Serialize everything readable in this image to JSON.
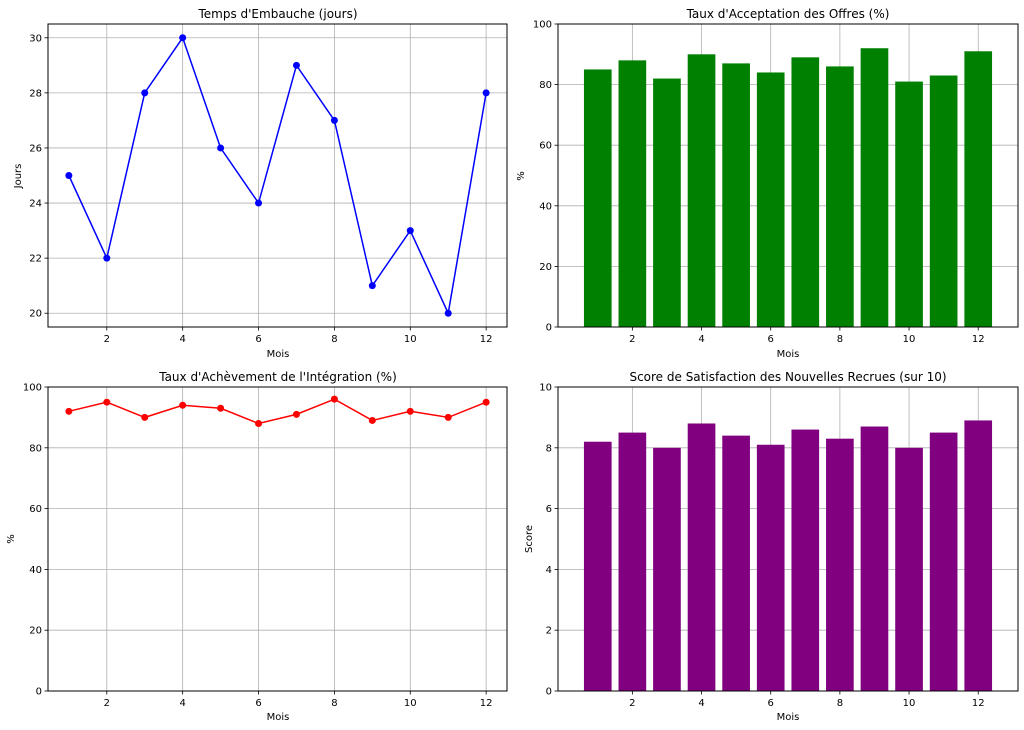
{
  "chart_data": [
    {
      "type": "line",
      "title": "Temps d'Embauche (jours)",
      "xlabel": "Mois",
      "ylabel": "Jours",
      "x": [
        1,
        2,
        3,
        4,
        5,
        6,
        7,
        8,
        9,
        10,
        11,
        12
      ],
      "values": [
        25,
        22,
        28,
        30,
        26,
        24,
        29,
        27,
        21,
        23,
        20,
        28
      ],
      "xlim": [
        0.45,
        12.55
      ],
      "ylim": [
        19.5,
        30.5
      ],
      "xticks": [
        2,
        4,
        6,
        8,
        10,
        12
      ],
      "yticks": [
        20,
        22,
        24,
        26,
        28,
        30
      ],
      "grid": true,
      "color": "#0000ff"
    },
    {
      "type": "bar",
      "title": "Taux d'Acceptation des Offres (%)",
      "xlabel": "Mois",
      "ylabel": "%",
      "x": [
        1,
        2,
        3,
        4,
        5,
        6,
        7,
        8,
        9,
        10,
        11,
        12
      ],
      "values": [
        85,
        88,
        82,
        90,
        87,
        84,
        89,
        86,
        92,
        81,
        83,
        91
      ],
      "xlim": [
        -0.15,
        13.15
      ],
      "ylim": [
        0,
        100
      ],
      "xticks": [
        2,
        4,
        6,
        8,
        10,
        12
      ],
      "yticks": [
        0,
        20,
        40,
        60,
        80,
        100
      ],
      "grid": true,
      "color": "#008000"
    },
    {
      "type": "line",
      "title": "Taux d'Achèvement de l'Intégration (%)",
      "xlabel": "Mois",
      "ylabel": "%",
      "x": [
        1,
        2,
        3,
        4,
        5,
        6,
        7,
        8,
        9,
        10,
        11,
        12
      ],
      "values": [
        92,
        95,
        90,
        94,
        93,
        88,
        91,
        96,
        89,
        92,
        90,
        95
      ],
      "xlim": [
        0.45,
        12.55
      ],
      "ylim": [
        0,
        100
      ],
      "xticks": [
        2,
        4,
        6,
        8,
        10,
        12
      ],
      "yticks": [
        0,
        20,
        40,
        60,
        80,
        100
      ],
      "grid": true,
      "color": "#ff0000"
    },
    {
      "type": "bar",
      "title": "Score de Satisfaction des Nouvelles Recrues (sur 10)",
      "xlabel": "Mois",
      "ylabel": "Score",
      "x": [
        1,
        2,
        3,
        4,
        5,
        6,
        7,
        8,
        9,
        10,
        11,
        12
      ],
      "values": [
        8.2,
        8.5,
        8.0,
        8.8,
        8.4,
        8.1,
        8.6,
        8.3,
        8.7,
        8.0,
        8.5,
        8.9
      ],
      "xlim": [
        -0.15,
        13.15
      ],
      "ylim": [
        0,
        10
      ],
      "xticks": [
        2,
        4,
        6,
        8,
        10,
        12
      ],
      "yticks": [
        0,
        2,
        4,
        6,
        8,
        10
      ],
      "grid": true,
      "color": "#800080"
    }
  ]
}
